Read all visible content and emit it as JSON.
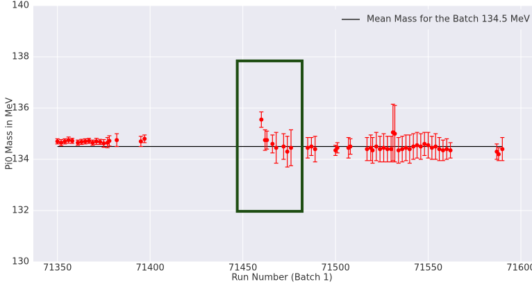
{
  "chart_data": {
    "type": "errorbar",
    "xlabel": "Run Number (Batch 1)",
    "ylabel": "Pi0 Mass in MeV",
    "xlim": [
      71337,
      71606
    ],
    "ylim": [
      130,
      140
    ],
    "xticks": [
      71350,
      71400,
      71450,
      71500,
      71550,
      71600
    ],
    "yticks": [
      130,
      132,
      134,
      136,
      138,
      140
    ],
    "grid": true,
    "legend": "upper right",
    "mean": {
      "name": "Mean Mass for the Batch 134.5 MeV",
      "value": 134.5,
      "color": "#000000"
    },
    "highlight": {
      "x": [
        71447,
        71482
      ],
      "y": [
        131.97,
        137.84
      ],
      "color": "#1e4d12"
    },
    "series": [
      {
        "color": "#ff0000",
        "x": [
          71350,
          71352,
          71354,
          71356,
          71358,
          71361,
          71363,
          71365,
          71367,
          71369,
          71371,
          71373,
          71375,
          71377,
          71378,
          71382,
          71395,
          71397,
          71460,
          71462,
          71463,
          71466,
          71468,
          71472,
          71474,
          71476,
          71485,
          71487,
          71489,
          71500,
          71501,
          71507,
          71508,
          71517,
          71519,
          71520,
          71522,
          71524,
          71526,
          71528,
          71530,
          71531,
          71532,
          71534,
          71536,
          71538,
          71540,
          71542,
          71544,
          71546,
          71548,
          71550,
          71552,
          71554,
          71556,
          71558,
          71560,
          71562,
          71587,
          71588,
          71590
        ],
        "values": [
          134.7,
          134.65,
          134.7,
          134.75,
          134.72,
          134.65,
          134.68,
          134.7,
          134.72,
          134.65,
          134.7,
          134.68,
          134.62,
          134.65,
          134.72,
          134.75,
          134.7,
          134.8,
          135.55,
          134.75,
          134.75,
          134.6,
          134.45,
          134.5,
          134.3,
          134.45,
          134.45,
          134.5,
          134.4,
          134.35,
          134.45,
          134.45,
          134.5,
          134.4,
          134.45,
          134.35,
          134.5,
          134.4,
          134.45,
          134.4,
          134.4,
          135.05,
          135.0,
          134.35,
          134.4,
          134.45,
          134.4,
          134.5,
          134.55,
          134.5,
          134.6,
          134.55,
          134.45,
          134.5,
          134.4,
          134.35,
          134.4,
          134.35,
          134.3,
          134.2,
          134.4
        ],
        "errors": [
          0.1,
          0.12,
          0.1,
          0.12,
          0.1,
          0.1,
          0.1,
          0.1,
          0.1,
          0.1,
          0.12,
          0.1,
          0.15,
          0.2,
          0.2,
          0.25,
          0.2,
          0.15,
          0.3,
          0.4,
          0.35,
          0.35,
          0.6,
          0.5,
          0.6,
          0.7,
          0.4,
          0.35,
          0.5,
          0.2,
          0.2,
          0.4,
          0.3,
          0.45,
          0.5,
          0.5,
          0.55,
          0.5,
          0.55,
          0.5,
          0.5,
          1.1,
          1.1,
          0.5,
          0.5,
          0.5,
          0.55,
          0.5,
          0.5,
          0.5,
          0.45,
          0.5,
          0.45,
          0.5,
          0.45,
          0.4,
          0.4,
          0.3,
          0.3,
          0.25,
          0.45
        ]
      }
    ]
  }
}
